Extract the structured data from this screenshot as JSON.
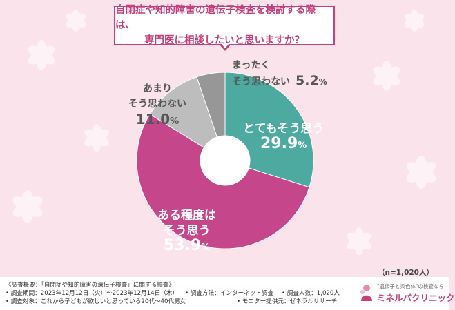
{
  "title": {
    "line1": "自閉症や知的障害の遺伝子検査を検討する際は、",
    "line2": "専門医に相談したいと思いますか？"
  },
  "chart_data": {
    "type": "pie",
    "donut": true,
    "slices": [
      {
        "label": "とてもそう思う",
        "value": 29.9,
        "color": "#4daaa0"
      },
      {
        "label": "ある程度はそう思う",
        "value": 53.9,
        "color": "#c6468c"
      },
      {
        "label": "あまりそう思わない",
        "value": 11.0,
        "color": "#bdbdbd"
      },
      {
        "label": "まったくそう思わない",
        "value": 5.2,
        "color": "#979797"
      }
    ],
    "start_angle_deg": 0,
    "direction": "clockwise",
    "percent_unit": "%"
  },
  "annotations": {
    "s0": {
      "lbl": "とてもそう思う",
      "num": "29.9"
    },
    "s1": {
      "lbl1": "ある程度は",
      "lbl2": "そう思う",
      "num": "53.9"
    },
    "s2": {
      "lbl1": "あまり",
      "lbl2": "そう思わない",
      "num": "11.0"
    },
    "s3": {
      "lbl1": "まったく",
      "lbl2": "そう思わない",
      "num": "5.2"
    },
    "unit": "%"
  },
  "sample_note": "（n=1,020人）",
  "footer": {
    "line1": "《調査概要：「自閉症や知的障害の遺伝子検査」に関する調査》",
    "line2": "• 調査期間：2023年12月12日（火）～2023年12月14日（木）",
    "line3": "• 調査対象：これから子どもが欲しいと思っている20代～40代男女",
    "method": "• 調査方法：インターネット調査",
    "count": "• 調査人数：1,020人",
    "provider": "• モニター提供元：ゼネラルリサーチ"
  },
  "logo": {
    "sub": "\"遺伝子と染色体\"の検査なら",
    "main": "ミネルバクリニック"
  }
}
